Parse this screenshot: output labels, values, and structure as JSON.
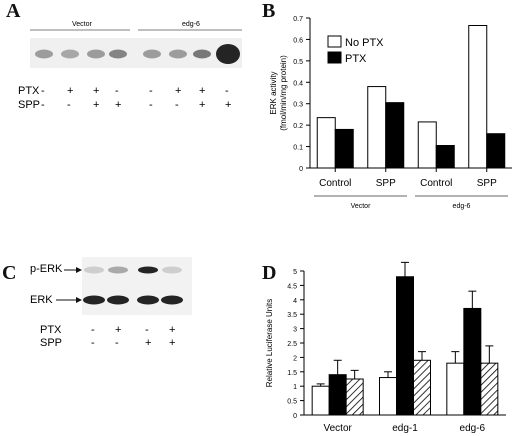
{
  "panels": {
    "A": {
      "letter": "A",
      "groups": [
        "Vector",
        "edg-6"
      ],
      "rows": [
        {
          "label": "PTX",
          "signs": [
            "-",
            "+",
            "+",
            "-",
            "-",
            "+",
            "+",
            "-"
          ]
        },
        {
          "label": "SPP",
          "signs": [
            "-",
            "-",
            "+",
            "+",
            "-",
            "-",
            "+",
            "+"
          ]
        }
      ]
    },
    "B": {
      "letter": "B"
    },
    "C": {
      "letter": "C",
      "bands": [
        "p-ERK",
        "ERK"
      ],
      "rows": [
        {
          "label": "PTX",
          "signs": [
            "-",
            "+",
            "-",
            "+"
          ]
        },
        {
          "label": "SPP",
          "signs": [
            "-",
            "-",
            "+",
            "+"
          ]
        }
      ]
    },
    "D": {
      "letter": "D"
    }
  },
  "chart_data": [
    {
      "panel": "B",
      "type": "bar",
      "ylabel": "ERK activity (fmol/min/mg protein)",
      "ylim": [
        0,
        0.7
      ],
      "yticks": [
        0,
        0.1,
        0.2,
        0.3,
        0.4,
        0.5,
        0.6,
        0.7
      ],
      "categories": [
        "Control",
        "SPP",
        "Control",
        "SPP"
      ],
      "groups": [
        {
          "label": "Vector",
          "span": [
            0,
            1
          ]
        },
        {
          "label": "edg-6",
          "span": [
            2,
            3
          ]
        }
      ],
      "legend_position": "top-left",
      "series": [
        {
          "name": "No PTX",
          "fill": "#ffffff",
          "values": [
            0.235,
            0.38,
            0.215,
            0.665
          ]
        },
        {
          "name": "PTX",
          "fill": "#000000",
          "values": [
            0.18,
            0.305,
            0.105,
            0.16
          ]
        }
      ]
    },
    {
      "panel": "D",
      "type": "bar",
      "ylabel": "Relative Luciferase Units",
      "ylim": [
        0,
        5
      ],
      "yticks": [
        0,
        0.5,
        1,
        1.5,
        2,
        2.5,
        3,
        3.5,
        4,
        4.5,
        5
      ],
      "categories": [
        "Vector",
        "edg-1",
        "edg-6"
      ],
      "series": [
        {
          "fill": "white",
          "values": [
            1.0,
            1.3,
            1.8
          ],
          "errors": [
            0.08,
            0.2,
            0.4
          ]
        },
        {
          "fill": "black",
          "values": [
            1.4,
            4.8,
            3.7
          ],
          "errors": [
            0.5,
            0.5,
            0.6
          ]
        },
        {
          "fill": "hatched",
          "values": [
            1.25,
            1.9,
            1.8
          ],
          "errors": [
            0.3,
            0.3,
            0.6
          ]
        }
      ]
    }
  ]
}
